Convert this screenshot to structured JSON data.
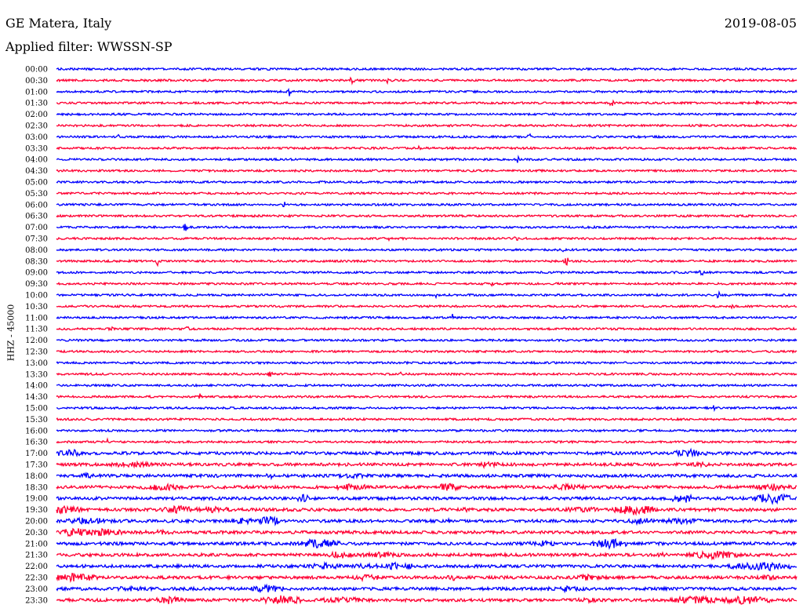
{
  "header": {
    "station": "GE Matera, Italy",
    "date": "2019-08-05",
    "filter": "Applied filter: WWSSN-SP"
  },
  "chart_data": {
    "type": "line",
    "title": "GE Matera, Italy",
    "subtitle": "Applied filter: WWSSN-SP",
    "ylabel": "HHZ - 45000",
    "xlabel": "",
    "rows": [
      "00:00",
      "00:30",
      "01:00",
      "01:30",
      "02:00",
      "02:30",
      "03:00",
      "03:30",
      "04:00",
      "04:30",
      "05:00",
      "05:30",
      "06:00",
      "06:30",
      "07:00",
      "07:30",
      "08:00",
      "08:30",
      "09:00",
      "09:30",
      "10:00",
      "10:30",
      "11:00",
      "11:30",
      "12:00",
      "12:30",
      "13:00",
      "13:30",
      "14:00",
      "14:30",
      "15:00",
      "15:30",
      "16:00",
      "16:30",
      "17:00",
      "17:30",
      "18:00",
      "18:30",
      "19:00",
      "19:30",
      "20:00",
      "20:30",
      "21:00",
      "21:30",
      "22:00",
      "22:30",
      "23:00",
      "23:30"
    ],
    "colors": [
      "#0000ff",
      "#ff0033"
    ],
    "grid": false,
    "legend": "none"
  }
}
